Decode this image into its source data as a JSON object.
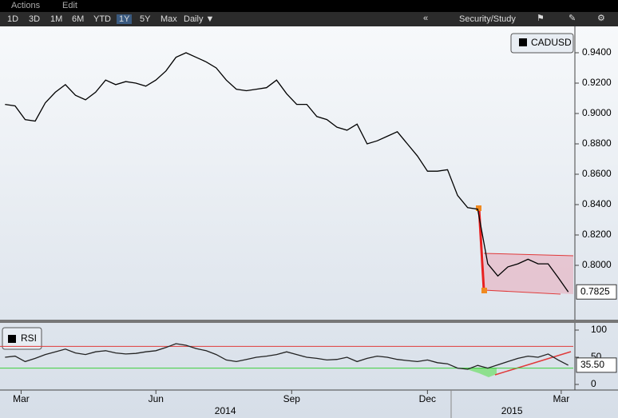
{
  "toolbar": {
    "menu": [
      "Actions",
      "Edit"
    ],
    "ranges": [
      "1D",
      "3D",
      "1M",
      "6M",
      "YTD",
      "1Y",
      "5Y",
      "Max"
    ],
    "active_range": "1Y",
    "frequency": "Daily ▼",
    "study_button": "Security/Study"
  },
  "chart_data": [
    {
      "type": "line",
      "legend": "CADUSD",
      "color": "#000000",
      "values": [
        0.906,
        0.905,
        0.896,
        0.895,
        0.907,
        0.914,
        0.919,
        0.912,
        0.909,
        0.914,
        0.922,
        0.919,
        0.921,
        0.92,
        0.918,
        0.922,
        0.928,
        0.937,
        0.94,
        0.937,
        0.934,
        0.93,
        0.922,
        0.916,
        0.915,
        0.916,
        0.917,
        0.922,
        0.913,
        0.906,
        0.906,
        0.898,
        0.896,
        0.891,
        0.889,
        0.893,
        0.88,
        0.882,
        0.885,
        0.888,
        0.88,
        0.872,
        0.862,
        0.862,
        0.863,
        0.846,
        0.838,
        0.837,
        0.801,
        0.793,
        0.799,
        0.801,
        0.804,
        0.801,
        0.801,
        0.792,
        0.7825
      ],
      "xlim": [
        0,
        57
      ],
      "ylim": [
        0.765,
        0.955
      ],
      "yticks": [
        {
          "value": 0.8,
          "label": "0.8000"
        },
        {
          "value": 0.82,
          "label": "0.8200"
        },
        {
          "value": 0.84,
          "label": "0.8400"
        },
        {
          "value": 0.86,
          "label": "0.8600"
        },
        {
          "value": 0.88,
          "label": "0.8800"
        },
        {
          "value": 0.9,
          "label": "0.9000"
        },
        {
          "value": 0.92,
          "label": "0.9200"
        },
        {
          "value": 0.94,
          "label": "0.9400"
        }
      ],
      "current_value": {
        "value": 0.7825,
        "label": "0.7825"
      }
    },
    {
      "type": "line",
      "legend": "RSI",
      "color": "#222222",
      "values": [
        50,
        52,
        42,
        48,
        55,
        60,
        65,
        58,
        55,
        60,
        62,
        58,
        56,
        57,
        60,
        62,
        68,
        75,
        72,
        66,
        62,
        55,
        45,
        42,
        46,
        50,
        52,
        55,
        60,
        55,
        50,
        48,
        45,
        46,
        50,
        42,
        48,
        52,
        50,
        46,
        44,
        42,
        45,
        40,
        38,
        30,
        28,
        35,
        30,
        36,
        42,
        48,
        52,
        50,
        56,
        45,
        35.5
      ],
      "xlim": [
        0,
        57
      ],
      "ylim": [
        -5,
        105
      ],
      "yticks": [
        0,
        50,
        100
      ],
      "levels": [
        {
          "value": 70,
          "color": "#e03a3a"
        },
        {
          "value": 30,
          "color": "#3ccf3c"
        }
      ],
      "current_value": {
        "value": 35.5,
        "label": "35.50"
      },
      "xticks": [
        {
          "value": 2.1,
          "label": "Mar"
        },
        {
          "value": 15.5,
          "label": "Jun"
        },
        {
          "value": 29,
          "label": "Sep"
        },
        {
          "value": 42.5,
          "label": "Dec"
        },
        {
          "value": 55.8,
          "label": "Mar"
        }
      ],
      "year_labels": [
        {
          "value": 22.4,
          "label": "2014"
        },
        {
          "value": 50.9,
          "label": "2015"
        }
      ]
    }
  ]
}
